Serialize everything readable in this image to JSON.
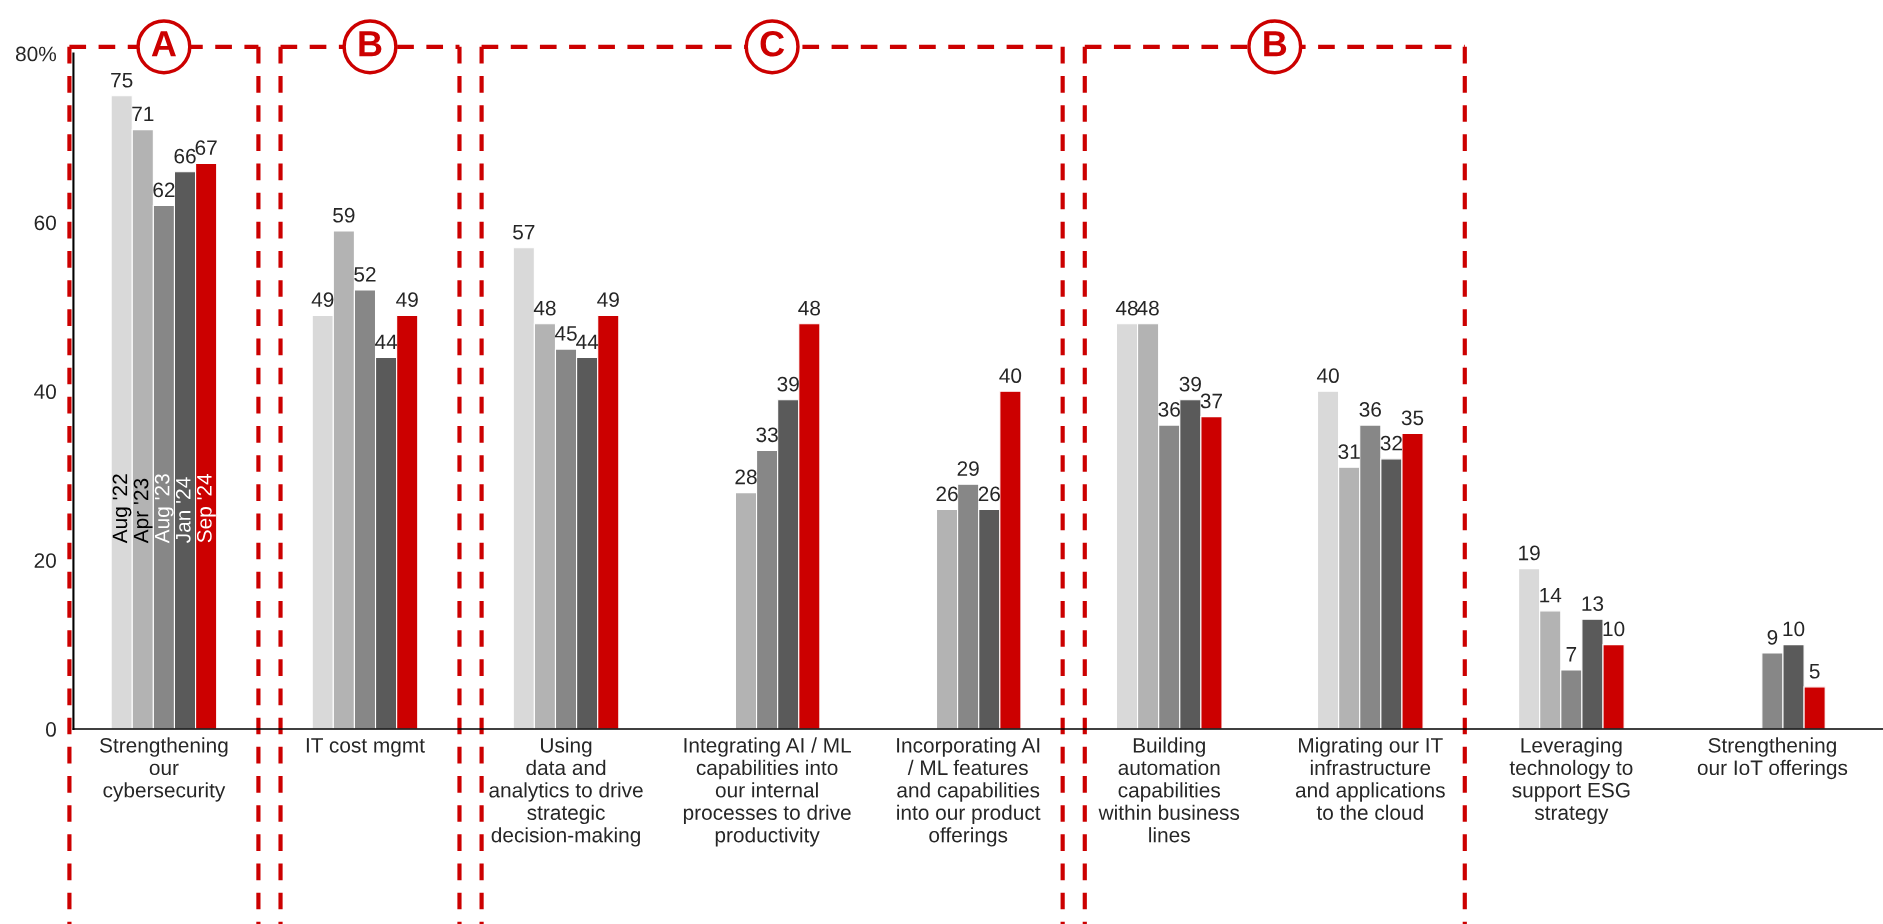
{
  "chart_data": {
    "type": "bar",
    "categories": [
      "Strengthening\nour\ncybersecurity",
      "IT cost mgmt",
      "Using\ndata and\nanalytics to drive\nstrategic\ndecision-making",
      "Integrating AI / ML\ncapabilities into\nour internal\nprocesses to drive\nproductivity",
      "Incorporating AI\n/ ML features\nand capabilities\ninto our product\nofferings",
      "Building\nautomation\ncapabilities\nwithin business\nlines",
      "Migrating our IT\ninfrastructure\nand applications\nto the cloud",
      "Leveraging\ntechnology to\nsupport ESG\nstrategy",
      "Strengthening\nour IoT offerings"
    ],
    "series": [
      {
        "name": "Aug '22",
        "color": "#d9d9d9",
        "values": [
          75,
          49,
          57,
          null,
          null,
          48,
          40,
          19,
          null
        ]
      },
      {
        "name": "Apr '23",
        "color": "#b3b3b3",
        "values": [
          71,
          59,
          48,
          28,
          26,
          48,
          31,
          14,
          null
        ]
      },
      {
        "name": "Aug '23",
        "color": "#878787",
        "values": [
          62,
          52,
          45,
          33,
          29,
          36,
          36,
          7,
          9
        ]
      },
      {
        "name": "Jan '24",
        "color": "#5a5a5a",
        "values": [
          66,
          44,
          44,
          39,
          26,
          39,
          32,
          13,
          10
        ]
      },
      {
        "name": "Sep '24",
        "color": "#cc0000",
        "values": [
          67,
          49,
          49,
          48,
          40,
          37,
          35,
          10,
          5
        ]
      }
    ],
    "ylim": [
      0,
      80
    ],
    "yticks": [
      0,
      20,
      40,
      60,
      {
        "value": 80,
        "label": "80%"
      }
    ],
    "data_labels": true,
    "grid": false,
    "legend": false,
    "annotations": [
      "A",
      "B",
      "C",
      "B"
    ]
  }
}
